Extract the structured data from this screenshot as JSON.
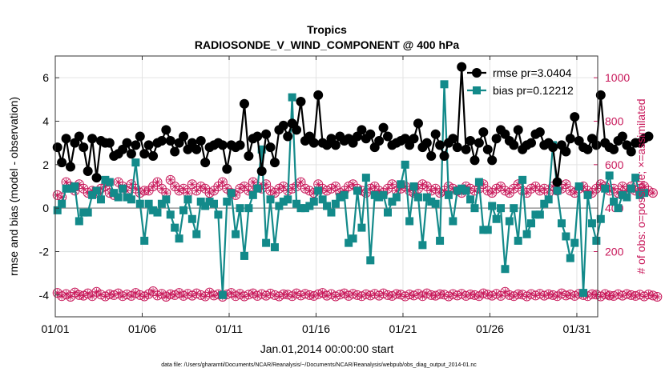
{
  "chart_data": {
    "type": "line",
    "title": "Tropics",
    "subtitle": "RADIOSONDE_V_WIND_COMPONENT @ 400 hPa",
    "xlabel": "Jan.01,2014 00:00:00 start",
    "ylabel_left": "rmse and bias (model - observation)",
    "ylabel_right": "# of obs: o=possible; ×=assimilated",
    "footnote": "data file: /Users/gharamti/Documents/NCAR/Reanalysis/~/Documents/NCAR/Reanalysis/webpub/obs_diag_output_2014-01.nc",
    "xlim": [
      0,
      31.2
    ],
    "ylim_left": [
      -5,
      7
    ],
    "ylim_right": [
      -100,
      1100
    ],
    "x_tick_values": [
      0,
      5,
      10,
      15,
      20,
      25,
      30
    ],
    "x_tick_labels": [
      "01/01",
      "01/06",
      "01/11",
      "01/16",
      "01/21",
      "01/26",
      "01/31"
    ],
    "y_left_tick_values": [
      -4,
      -2,
      0,
      2,
      4,
      6
    ],
    "y_left_tick_labels": [
      "-4",
      "-2",
      "0",
      "2",
      "4",
      "6"
    ],
    "y_right_tick_values": [
      0,
      200,
      400,
      600,
      800,
      1000
    ],
    "y_right_tick_labels": [
      "0",
      "200",
      "400",
      "600",
      "800",
      "1000"
    ],
    "legend_position": "top-right",
    "x_step_days": 0.25,
    "colors": {
      "rmse": "#000000",
      "bias": "#138a8a",
      "obs": "#c8185a",
      "zero": "#9a9a9a",
      "axes": "#333333"
    },
    "series": [
      {
        "name": "rmse",
        "legend": "rmse pr=3.0404",
        "axis": "left",
        "values": [
          2.8,
          2.1,
          3.2,
          1.9,
          3.0,
          3.3,
          2.8,
          1.7,
          3.2,
          1.4,
          3.1,
          3.0,
          3.0,
          2.4,
          2.5,
          2.7,
          3.0,
          2.5,
          2.9,
          3.3,
          2.5,
          2.9,
          2.4,
          3.0,
          3.1,
          3.6,
          3.1,
          2.6,
          3.0,
          3.3,
          2.7,
          3.0,
          2.7,
          3.1,
          2.1,
          2.8,
          2.9,
          3.0,
          2.9,
          1.8,
          2.9,
          2.8,
          2.9,
          4.8,
          2.4,
          3.2,
          3.3,
          1.7,
          3.4,
          2.8,
          2.1,
          3.6,
          3.8,
          3.3,
          3.9,
          3.6,
          4.9,
          3.1,
          3.3,
          3.0,
          5.2,
          3.0,
          2.9,
          3.2,
          2.9,
          3.3,
          3.1,
          3.2,
          3.0,
          3.3,
          3.6,
          3.2,
          3.4,
          2.8,
          3.1,
          3.7,
          3.3,
          2.9,
          3.0,
          3.1,
          3.2,
          2.9,
          3.2,
          3.9,
          2.8,
          3.0,
          2.4,
          3.4,
          2.9,
          2.4,
          3.0,
          3.2,
          2.8,
          6.5,
          2.7,
          3.1,
          2.2,
          3.0,
          3.5,
          2.7,
          2.2,
          3.2,
          3.6,
          3.4,
          3.1,
          2.9,
          3.6,
          2.7,
          2.9,
          3.0,
          3.4,
          3.5,
          2.9,
          3.0,
          2.8,
          1.2,
          2.9,
          2.6,
          3.2,
          4.2,
          3.1,
          2.8,
          2.7,
          3.2,
          2.9,
          5.2,
          3.0,
          2.8,
          2.7,
          3.1,
          3.3,
          2.9,
          2.6,
          3.0,
          3.0,
          3.2,
          3.3
        ]
      },
      {
        "name": "bias",
        "legend": "bias pr=0.12212",
        "axis": "left",
        "values": [
          -0.1,
          0.2,
          0.9,
          0.9,
          1.0,
          -0.6,
          -0.2,
          -0.2,
          0.6,
          0.8,
          0.4,
          1.3,
          1.2,
          0.7,
          0.5,
          0.9,
          0.5,
          0.4,
          2.1,
          0.2,
          -1.5,
          0.2,
          -0.1,
          -0.2,
          0.2,
          0.4,
          -0.3,
          -0.9,
          -1.4,
          -0.1,
          0.4,
          -0.5,
          -1.2,
          0.3,
          0.1,
          0.3,
          0.2,
          -0.3,
          -4.0,
          0.3,
          0.7,
          -1.2,
          0.0,
          -2.2,
          0.0,
          0.6,
          0.9,
          2.7,
          -1.6,
          0.4,
          -1.8,
          0.1,
          0.3,
          0.4,
          5.1,
          0.2,
          0.0,
          0.0,
          0.1,
          0.3,
          0.8,
          0.4,
          0.1,
          -0.2,
          0.2,
          0.5,
          0.6,
          -1.6,
          -1.4,
          0.8,
          -0.9,
          1.4,
          -2.4,
          0.6,
          0.5,
          0.6,
          -0.2,
          0.3,
          0.5,
          1.1,
          2.0,
          -0.6,
          1.0,
          0.5,
          -1.7,
          0.5,
          0.3,
          0.2,
          -1.5,
          5.7,
          0.6,
          -0.6,
          0.8,
          0.9,
          0.8,
          0.4,
          0.0,
          1.2,
          -1.0,
          -1.0,
          0.1,
          -0.5,
          0.0,
          -2.8,
          -0.6,
          0.0,
          -1.5,
          1.3,
          -1.2,
          -0.7,
          -0.3,
          -0.3,
          0.2,
          0.4,
          2.9,
          0.8,
          -0.7,
          -1.3,
          -2.3,
          -1.6,
          1.0,
          -3.9,
          0.6,
          -0.7,
          -1.5,
          -0.5,
          0.9,
          1.5,
          0.3,
          0.0,
          0.6,
          0.5,
          0.9,
          1.4,
          0.6,
          0.7
        ]
      },
      {
        "name": "obs_possible_upper",
        "axis": "right",
        "marker": "circle-plus",
        "values": [
          460,
          450,
          520,
          500,
          480,
          510,
          490,
          470,
          480,
          470,
          490,
          500,
          470,
          460,
          520,
          500,
          480,
          510,
          490,
          470,
          480,
          480,
          500,
          520,
          490,
          470,
          530,
          500,
          480,
          490,
          470,
          510,
          480,
          500,
          490,
          470,
          480,
          500,
          520,
          490,
          470,
          460,
          490,
          500,
          480,
          520,
          500,
          490,
          510,
          480,
          470,
          490,
          500,
          480,
          490,
          500,
          520,
          490,
          480,
          470,
          510,
          490,
          480,
          490,
          500,
          470,
          480,
          500,
          510,
          490,
          480,
          470,
          490,
          500,
          480,
          470,
          490,
          510,
          480,
          490,
          500,
          480,
          470,
          490,
          510,
          500,
          480,
          490,
          470,
          480,
          500,
          490,
          480,
          470,
          500,
          490,
          480,
          490,
          510,
          480,
          470,
          490,
          500,
          480,
          470,
          490,
          510,
          480,
          470,
          490,
          500,
          480,
          490,
          470,
          500,
          480,
          490,
          510,
          480,
          470,
          490,
          500,
          480,
          470,
          490,
          510,
          500,
          480,
          490,
          470,
          500,
          480,
          500,
          480,
          490,
          500,
          480,
          470
        ]
      },
      {
        "name": "obs_possible_lower",
        "axis": "right",
        "marker": "circle-plus",
        "values": [
          10,
          -5,
          5,
          -8,
          12,
          0,
          -3,
          8,
          -5,
          15,
          2,
          -6,
          4,
          0,
          8,
          -5,
          3,
          -4,
          10,
          0,
          -6,
          5,
          18,
          -2,
          6,
          -8,
          4,
          0,
          10,
          -4,
          6,
          -3,
          8,
          0,
          -6,
          12,
          -2,
          4,
          -8,
          3,
          10,
          -5,
          6,
          -6,
          2,
          8,
          -4,
          5,
          -3,
          7,
          0,
          -6,
          4,
          2,
          -5,
          8,
          -2,
          6,
          0,
          -4,
          4,
          10,
          -3,
          5,
          -6,
          2,
          8,
          -4,
          6,
          0,
          -5,
          4,
          -2,
          6,
          -3,
          8,
          0,
          -4,
          5,
          2,
          -6,
          3,
          -2,
          6,
          -5,
          8,
          0,
          -3,
          4,
          2,
          -6,
          5,
          -2,
          6,
          -4,
          3,
          0,
          -5,
          8,
          2,
          -3,
          6,
          -4,
          15,
          0,
          -5,
          4,
          2,
          -6,
          5,
          -2,
          6,
          -3,
          4,
          0,
          -5,
          8,
          -2,
          3,
          -4,
          6,
          0,
          -5,
          4,
          2,
          -6,
          5,
          -2,
          -4,
          4,
          -3,
          5,
          0,
          -4,
          2,
          -6,
          3,
          -2,
          -8
        ]
      }
    ]
  }
}
